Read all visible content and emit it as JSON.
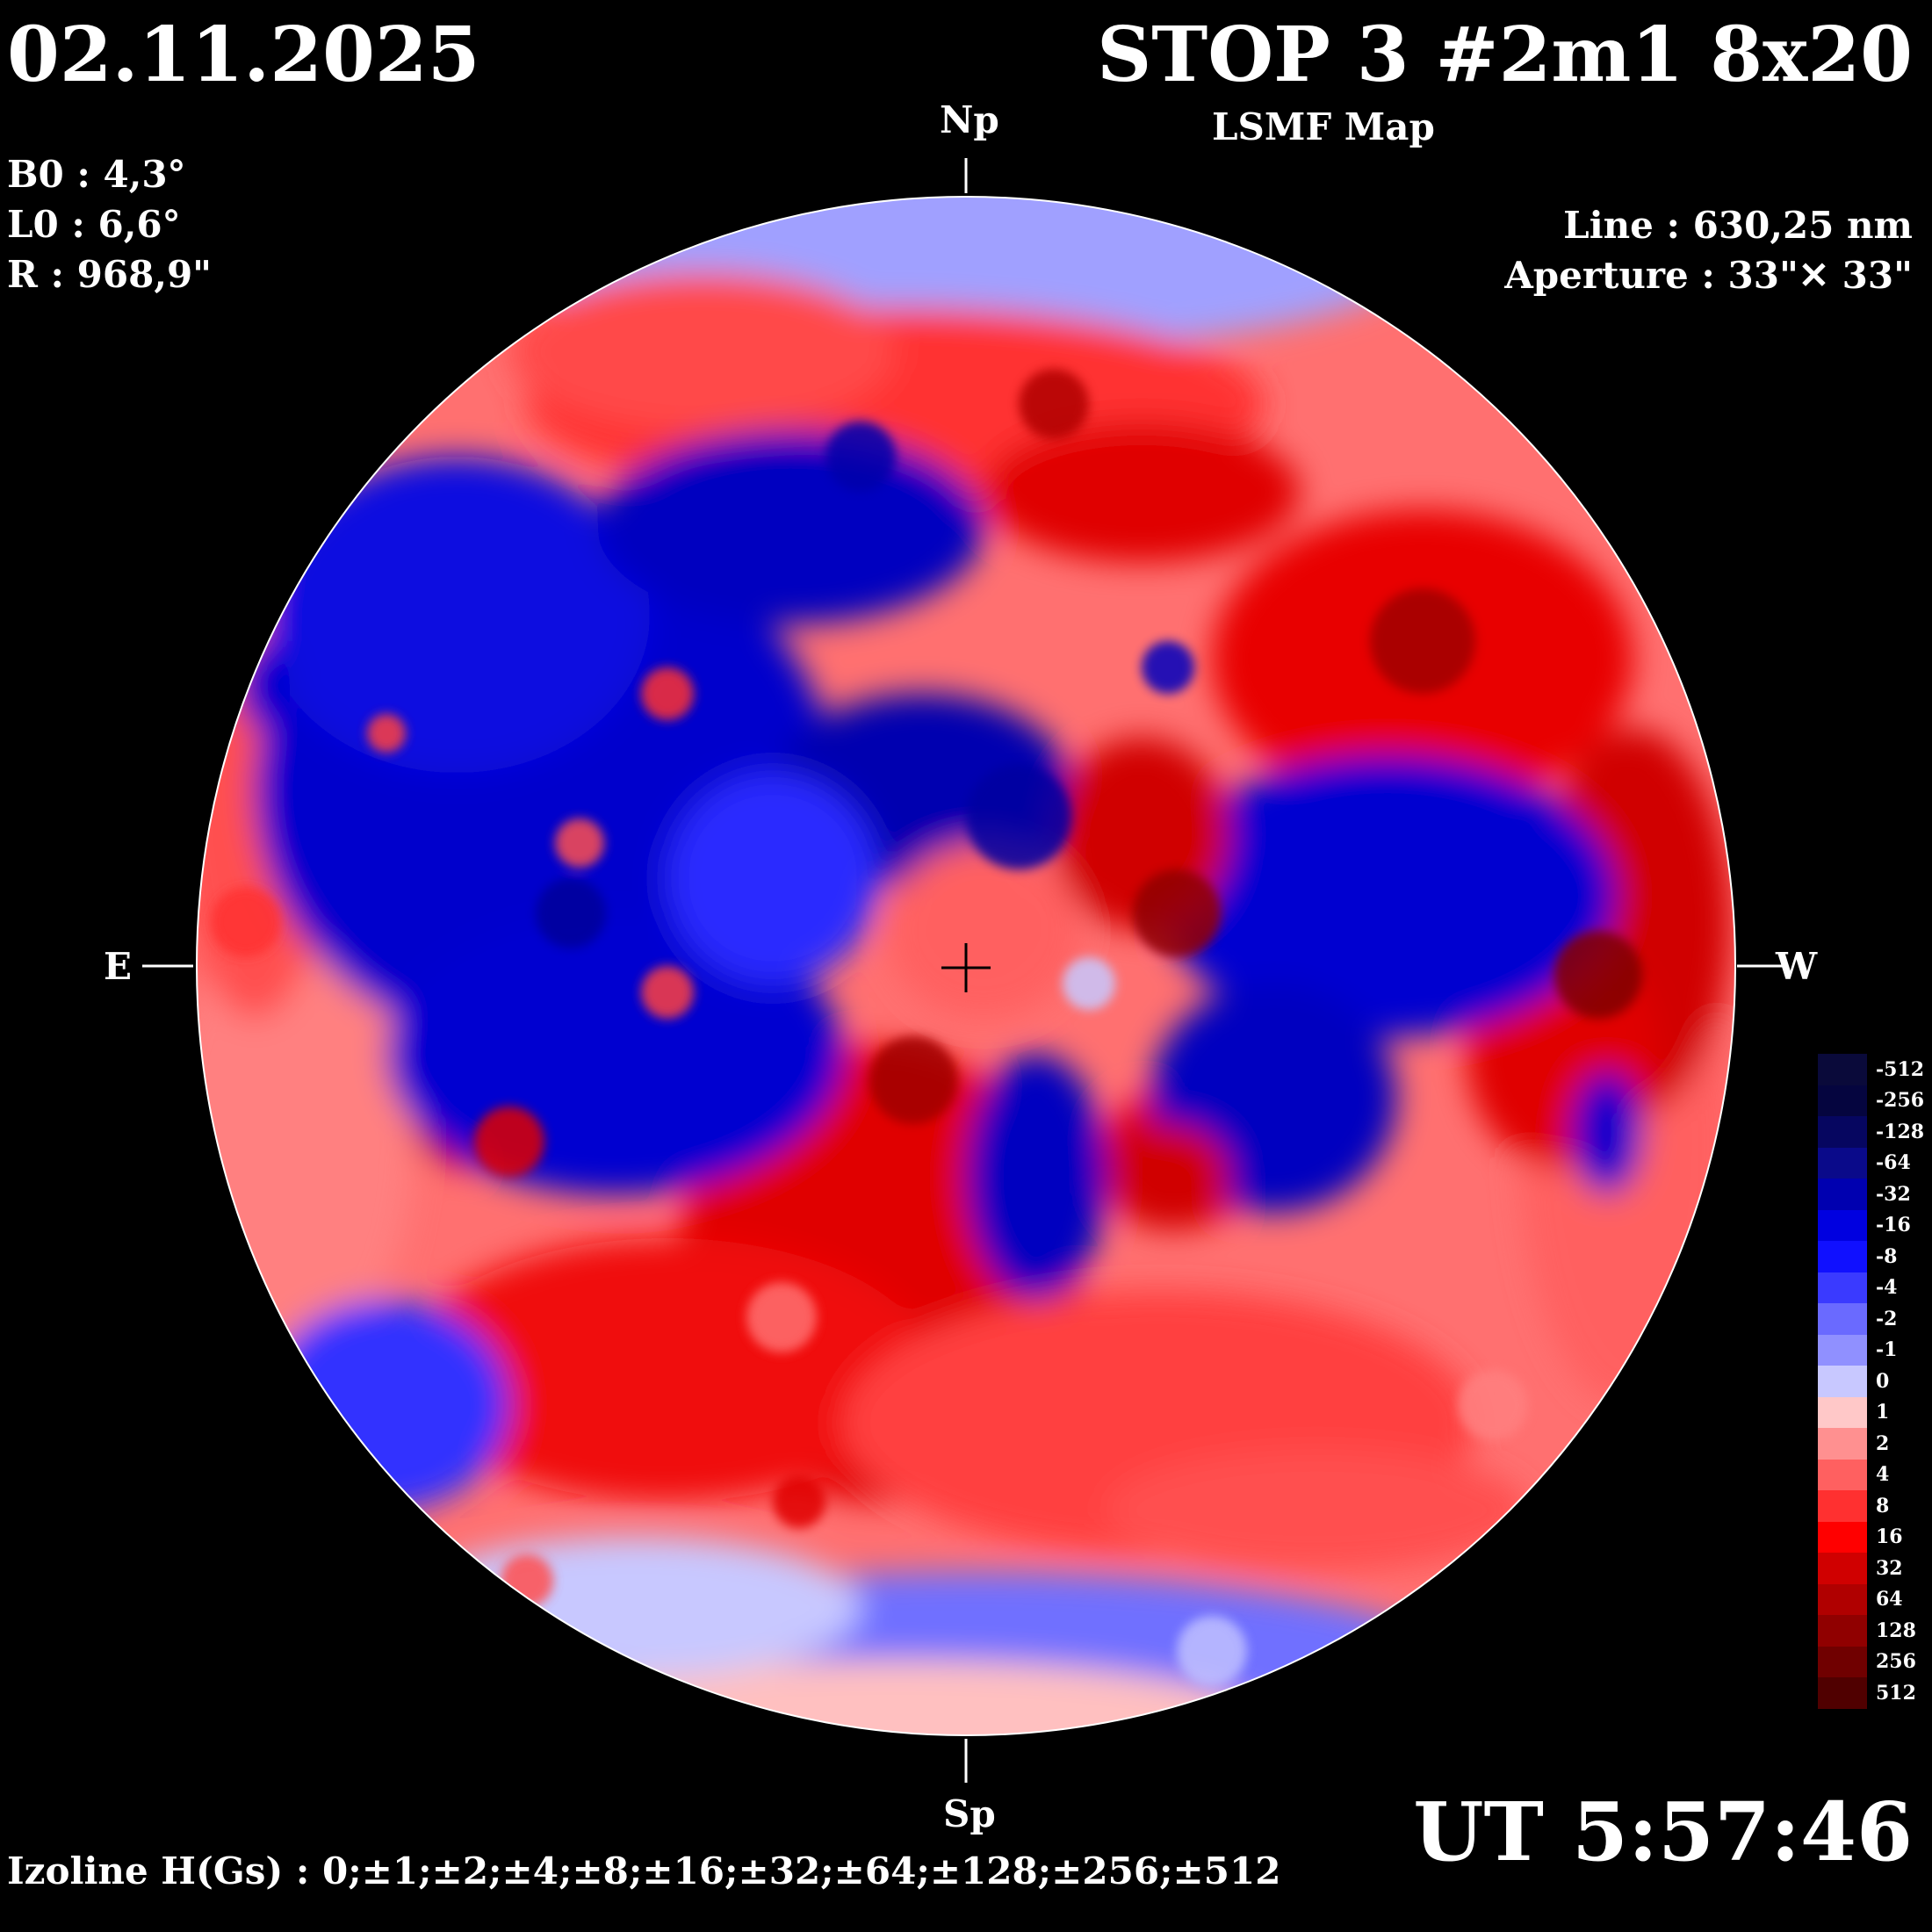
{
  "header": {
    "date": "02.11.2025",
    "title": "STOP 3 #2m1 8x20",
    "subtitle": "LSMF  Map"
  },
  "params": {
    "b0": "B0 : 4,3°",
    "l0": "L0 : 6,6°",
    "r": "R  : 968,9\""
  },
  "instrument": {
    "line": "Line :  630,25 nm",
    "aperture": "Aperture : 33\"✕ 33\""
  },
  "cardinals": {
    "north": "Np",
    "south": "Sp",
    "east": "E",
    "west": "W"
  },
  "time": "UT 5:57:46",
  "izoline": "Izoline H(Gs) : 0;±1;±2;±4;±8;±16;±32;±64;±128;±256;±512",
  "colorbar": {
    "levels": [
      "-512",
      "-256",
      "-128",
      "-64",
      "-32",
      "-16",
      "-8",
      "-4",
      "-2",
      "-1",
      "0",
      "1",
      "2",
      "4",
      "8",
      "16",
      "32",
      "64",
      "128",
      "256",
      "512"
    ],
    "colors": [
      "#0a0a3a",
      "#05053f",
      "#060660",
      "#0a0a8a",
      "#0000b0",
      "#0000e0",
      "#1010ff",
      "#3a3aff",
      "#6a6aff",
      "#9090ff",
      "#c8c8ff",
      "#ffc8c8",
      "#ff9090",
      "#ff6060",
      "#ff3030",
      "#ff0000",
      "#d00000",
      "#b00000",
      "#900000",
      "#700000",
      "#500000"
    ]
  },
  "map_legend": {
    "positive_color": "#e00000",
    "negative_color": "#0000cc",
    "contour_color": "#ffffff"
  }
}
